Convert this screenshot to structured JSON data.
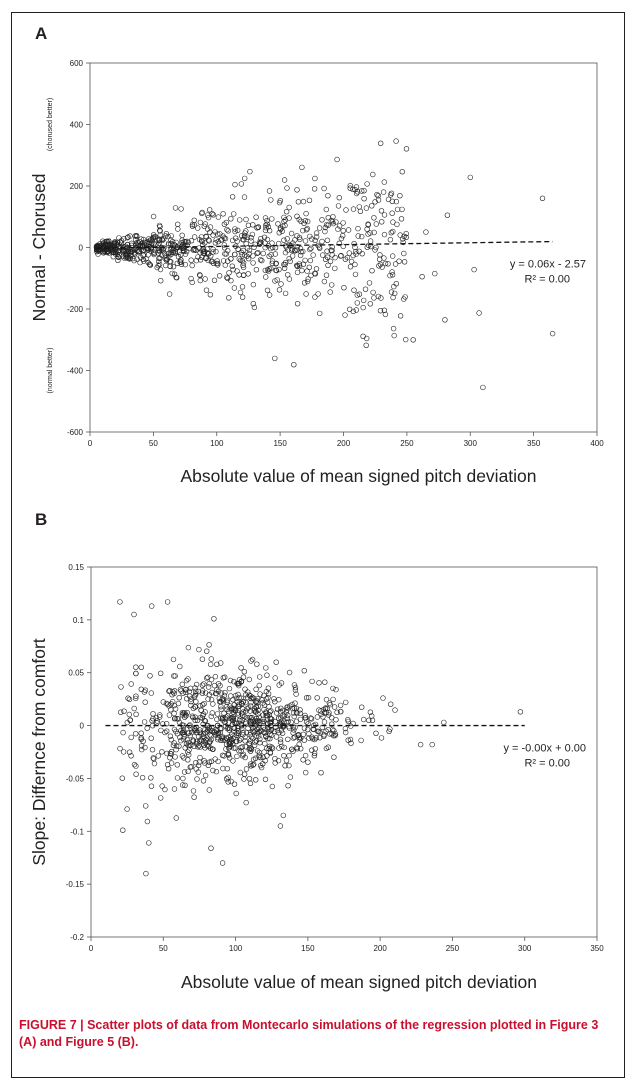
{
  "figure": {
    "caption": "FIGURE 7 | Scatter plots of data from Montecarlo simulations of the regression plotted in Figure 3 (A) and Figure 5 (B)."
  },
  "chart_data": [
    {
      "panel": "A",
      "type": "scatter",
      "xlabel": "Absolute value of mean signed pitch deviation",
      "ylabel": "Normal - Chorused",
      "annotations": {
        "top": "(chorused better)",
        "bottom": "(normal better)"
      },
      "xlim": [
        0,
        400
      ],
      "ylim": [
        -600,
        600
      ],
      "xticks": [
        0,
        50,
        100,
        150,
        200,
        250,
        300,
        350,
        400
      ],
      "yticks": [
        -600,
        -400,
        -200,
        0,
        200,
        400,
        600
      ],
      "grid": false,
      "marker": "open-circle",
      "trendline": {
        "equation": "y = 0.06x - 2.57",
        "r2": "R² = 0.00",
        "slope": 0.06,
        "intercept": -2.57,
        "x_range": [
          5,
          365
        ]
      },
      "point_cloud": {
        "n": 900,
        "x_core": [
          5,
          250
        ],
        "x_tail_max": 365,
        "y_spread": "funnel widening with x from ±15 near x=5 to about ±400 near x=250"
      },
      "outliers": [
        [
          357,
          160
        ],
        [
          365,
          -280
        ],
        [
          310,
          -455
        ],
        [
          300,
          228
        ],
        [
          282,
          105
        ],
        [
          280,
          -235
        ],
        [
          307,
          -213
        ],
        [
          303,
          -72
        ],
        [
          265,
          50
        ],
        [
          262,
          -95
        ],
        [
          272,
          -85
        ],
        [
          255,
          -300
        ]
      ]
    },
    {
      "panel": "B",
      "type": "scatter",
      "xlabel": "Absolute value of mean signed pitch deviation",
      "ylabel": "Slope: Differnce from comfort",
      "xlim": [
        0,
        350
      ],
      "ylim": [
        -0.2,
        0.15
      ],
      "xticks": [
        0,
        50,
        100,
        150,
        200,
        250,
        300,
        350
      ],
      "yticks": [
        -0.2,
        -0.15,
        -0.1,
        -0.05,
        0,
        0.05,
        0.1,
        0.15
      ],
      "grid": false,
      "marker": "open-circle",
      "trendline": {
        "equation": "y = -0.00x + 0.00",
        "r2": "R² = 0.00",
        "slope": 0.0,
        "intercept": 0.0,
        "x_range": [
          10,
          300
        ]
      },
      "point_cloud": {
        "n": 900,
        "x_core": [
          20,
          240
        ],
        "y_spread": "widest (about ±0.1) near x=25-60, narrowing to about ±0.015 near x=240"
      },
      "outliers": [
        [
          20,
          0.117
        ],
        [
          22,
          -0.099
        ],
        [
          25,
          -0.079
        ],
        [
          38,
          -0.14
        ],
        [
          40,
          -0.111
        ],
        [
          42,
          0.113
        ],
        [
          53,
          0.117
        ],
        [
          85,
          0.101
        ],
        [
          83,
          -0.116
        ],
        [
          91,
          -0.13
        ],
        [
          131,
          -0.095
        ],
        [
          133,
          -0.085
        ],
        [
          297,
          0.013
        ],
        [
          228,
          -0.018
        ],
        [
          236,
          -0.018
        ],
        [
          244,
          0.003
        ]
      ]
    }
  ]
}
